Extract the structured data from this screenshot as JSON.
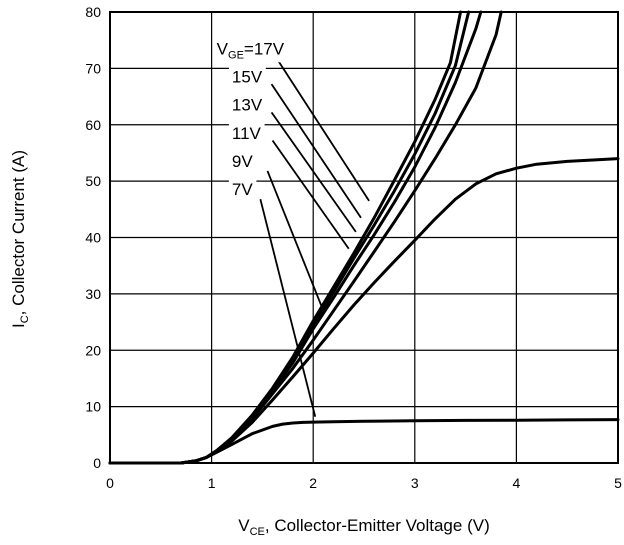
{
  "chart_data": {
    "type": "line",
    "title": "",
    "xlabel": {
      "main": "V",
      "sub": "CE",
      "rest": ", Collector-Emitter Voltage (V)"
    },
    "ylabel": {
      "main": "I",
      "sub": "C",
      "rest": ", Collector Current (A)"
    },
    "xlim": [
      0,
      5
    ],
    "ylim": [
      0,
      80
    ],
    "xticks": [
      "0",
      "1",
      "2",
      "3",
      "4",
      "5"
    ],
    "yticks": [
      "0",
      "10",
      "20",
      "30",
      "40",
      "50",
      "60",
      "70",
      "80"
    ],
    "grid": true,
    "series": [
      {
        "name": "VGE=17V",
        "label": {
          "main": "V",
          "sub": "GE",
          "rest": "=17V"
        },
        "label_at": [
          1.05,
          72.5
        ],
        "leader": [
          [
            1.65,
            71.5
          ],
          [
            2.55,
            46.5
          ]
        ],
        "x": [
          0,
          0.7,
          0.85,
          0.95,
          1.05,
          1.2,
          1.4,
          1.6,
          1.8,
          2.0,
          2.2,
          2.4,
          2.6,
          2.8,
          3.0,
          3.2,
          3.35,
          3.45
        ],
        "y": [
          0,
          0,
          0.4,
          1.0,
          2.2,
          4.5,
          8.5,
          13.3,
          18.8,
          25.2,
          31.2,
          37.2,
          43.5,
          50.2,
          57.0,
          64.5,
          71.0,
          80.0
        ]
      },
      {
        "name": "15V",
        "label_at": [
          1.2,
          67.5
        ],
        "leader": [
          [
            1.59,
            67.2
          ],
          [
            2.47,
            43.5
          ]
        ],
        "x": [
          0,
          0.7,
          0.85,
          0.95,
          1.05,
          1.2,
          1.4,
          1.6,
          1.8,
          2.0,
          2.2,
          2.4,
          2.6,
          2.8,
          3.0,
          3.2,
          3.4,
          3.53
        ],
        "y": [
          0,
          0,
          0.4,
          1.0,
          2.2,
          4.4,
          8.3,
          13.0,
          18.3,
          24.5,
          30.3,
          36.3,
          42.2,
          48.3,
          54.8,
          62.0,
          70.5,
          80.0
        ]
      },
      {
        "name": "13V",
        "label_at": [
          1.2,
          62.5
        ],
        "leader": [
          [
            1.59,
            62.2
          ],
          [
            2.42,
            41.0
          ]
        ],
        "x": [
          0,
          0.7,
          0.85,
          0.95,
          1.05,
          1.2,
          1.4,
          1.6,
          1.8,
          2.0,
          2.2,
          2.4,
          2.6,
          2.8,
          3.0,
          3.2,
          3.4,
          3.6,
          3.65
        ],
        "y": [
          0,
          0,
          0.4,
          1.0,
          2.2,
          4.3,
          8.1,
          12.8,
          17.8,
          23.8,
          29.3,
          35.0,
          40.5,
          46.3,
          52.5,
          59.5,
          67.5,
          77.0,
          80.0
        ]
      },
      {
        "name": "11V",
        "label_at": [
          1.2,
          57.5
        ],
        "leader": [
          [
            1.6,
            57.2
          ],
          [
            2.35,
            38.0
          ]
        ],
        "x": [
          0,
          0.7,
          0.85,
          0.95,
          1.05,
          1.2,
          1.4,
          1.6,
          1.8,
          2.0,
          2.2,
          2.4,
          2.6,
          2.8,
          3.0,
          3.2,
          3.4,
          3.6,
          3.8,
          3.85
        ],
        "y": [
          0,
          0,
          0.4,
          1.0,
          2.2,
          4.1,
          7.8,
          12.3,
          16.8,
          21.8,
          27.0,
          32.2,
          37.5,
          42.8,
          48.3,
          54.0,
          60.0,
          66.5,
          76.0,
          80.0
        ]
      },
      {
        "name": "9V",
        "label_at": [
          1.2,
          52.5
        ],
        "leader": [
          [
            1.55,
            51.8
          ],
          [
            2.1,
            27.0
          ]
        ],
        "x": [
          0,
          0.7,
          0.85,
          0.95,
          1.05,
          1.2,
          1.4,
          1.6,
          1.8,
          2.0,
          2.2,
          2.4,
          2.6,
          2.8,
          3.0,
          3.2,
          3.4,
          3.6,
          3.8,
          4.0,
          4.2,
          4.5,
          4.8,
          5.0
        ],
        "y": [
          0,
          0,
          0.4,
          1.0,
          2.1,
          3.9,
          7.2,
          11.2,
          15.3,
          19.5,
          23.8,
          28.0,
          32.0,
          35.8,
          39.5,
          43.3,
          46.8,
          49.5,
          51.3,
          52.3,
          53.0,
          53.5,
          53.8,
          54.0
        ]
      },
      {
        "name": "7V",
        "label_at": [
          1.2,
          47.5
        ],
        "leader": [
          [
            1.48,
            46.8
          ],
          [
            2.02,
            8.2
          ]
        ],
        "x": [
          0,
          0.7,
          0.85,
          0.95,
          1.05,
          1.2,
          1.4,
          1.6,
          1.7,
          1.8,
          1.9,
          2.0,
          2.2,
          2.5,
          3.0,
          3.5,
          4.0,
          4.5,
          5.0
        ],
        "y": [
          0,
          0,
          0.4,
          1.0,
          1.9,
          3.3,
          5.2,
          6.5,
          6.9,
          7.1,
          7.2,
          7.25,
          7.3,
          7.4,
          7.5,
          7.55,
          7.6,
          7.65,
          7.7
        ]
      }
    ]
  }
}
